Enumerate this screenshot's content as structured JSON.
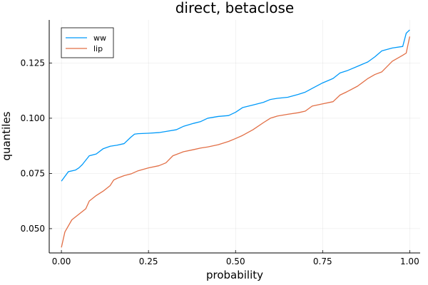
{
  "chart_data": {
    "type": "line",
    "title": "direct, betaclose",
    "xlabel": "probability",
    "ylabel": "quantiles",
    "xlim": [
      -0.035,
      1.03
    ],
    "ylim": [
      0.039,
      0.1445
    ],
    "xticks": [
      0.0,
      0.25,
      0.5,
      0.75,
      1.0
    ],
    "xtick_labels": [
      "0.00",
      "0.25",
      "0.50",
      "0.75",
      "1.00"
    ],
    "yticks": [
      0.05,
      0.075,
      0.1,
      0.125
    ],
    "ytick_labels": [
      "0.050",
      "0.075",
      "0.100",
      "0.125"
    ],
    "grid": true,
    "legend_position": "top-left",
    "series": [
      {
        "name": "ww",
        "color": "#009AFA",
        "x": [
          0.0,
          0.02,
          0.04,
          0.05,
          0.06,
          0.08,
          0.1,
          0.12,
          0.14,
          0.16,
          0.18,
          0.2,
          0.21,
          0.22,
          0.25,
          0.28,
          0.3,
          0.33,
          0.35,
          0.38,
          0.4,
          0.42,
          0.45,
          0.48,
          0.5,
          0.52,
          0.55,
          0.58,
          0.6,
          0.62,
          0.65,
          0.68,
          0.7,
          0.72,
          0.75,
          0.78,
          0.8,
          0.82,
          0.85,
          0.88,
          0.9,
          0.92,
          0.95,
          0.98,
          0.99,
          1.0
        ],
        "values": [
          0.0715,
          0.0758,
          0.0765,
          0.0775,
          0.079,
          0.083,
          0.0838,
          0.0862,
          0.0873,
          0.0878,
          0.0885,
          0.0915,
          0.0928,
          0.093,
          0.0932,
          0.0935,
          0.094,
          0.0948,
          0.0963,
          0.0977,
          0.0985,
          0.1,
          0.1008,
          0.1012,
          0.1027,
          0.1048,
          0.106,
          0.1072,
          0.1085,
          0.109,
          0.1095,
          0.1108,
          0.1118,
          0.1135,
          0.116,
          0.118,
          0.1205,
          0.1215,
          0.1235,
          0.1255,
          0.1278,
          0.1305,
          0.1318,
          0.1325,
          0.1385,
          0.14
        ]
      },
      {
        "name": "lip",
        "color": "#E26F46",
        "x": [
          0.0,
          0.01,
          0.03,
          0.05,
          0.07,
          0.08,
          0.1,
          0.12,
          0.14,
          0.15,
          0.16,
          0.18,
          0.2,
          0.22,
          0.25,
          0.28,
          0.3,
          0.32,
          0.35,
          0.38,
          0.4,
          0.42,
          0.45,
          0.48,
          0.5,
          0.52,
          0.55,
          0.58,
          0.6,
          0.62,
          0.65,
          0.68,
          0.7,
          0.72,
          0.75,
          0.78,
          0.8,
          0.82,
          0.85,
          0.88,
          0.9,
          0.92,
          0.95,
          0.98,
          0.99,
          1.0
        ],
        "values": [
          0.0415,
          0.0485,
          0.054,
          0.0565,
          0.059,
          0.0625,
          0.065,
          0.067,
          0.0695,
          0.072,
          0.0728,
          0.074,
          0.0748,
          0.0762,
          0.0775,
          0.0785,
          0.0798,
          0.083,
          0.0848,
          0.0858,
          0.0865,
          0.087,
          0.088,
          0.0895,
          0.0908,
          0.0922,
          0.0948,
          0.098,
          0.1,
          0.101,
          0.1018,
          0.1025,
          0.1032,
          0.1055,
          0.1065,
          0.1075,
          0.1105,
          0.112,
          0.1145,
          0.118,
          0.1198,
          0.121,
          0.1258,
          0.1285,
          0.1295,
          0.137
        ]
      }
    ]
  }
}
